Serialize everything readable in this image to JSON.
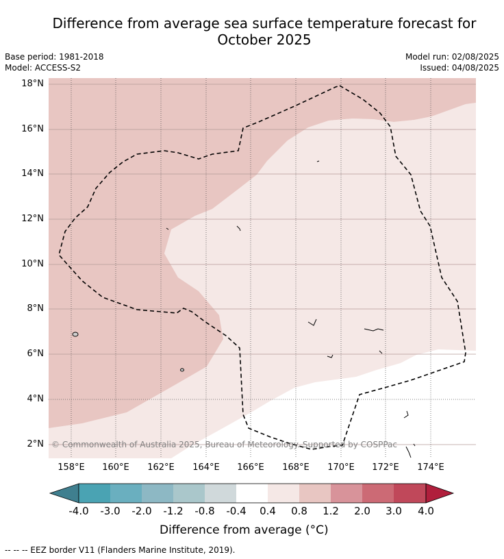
{
  "title_line1": "Difference from average sea surface temperature forecast for",
  "title_line2": "October 2025",
  "meta_left": [
    "Base period: 1981-2018",
    "Model: ACCESS-S2"
  ],
  "meta_right": [
    "Model run: 02/08/2025",
    "Issued: 04/08/2025"
  ],
  "map": {
    "lon_range": [
      157,
      176
    ],
    "lat_range": [
      1.4,
      18.3
    ],
    "y_ticks": [
      {
        "label": "18°N",
        "lat": 18
      },
      {
        "label": "16°N",
        "lat": 16
      },
      {
        "label": "14°N",
        "lat": 14
      },
      {
        "label": "12°N",
        "lat": 12
      },
      {
        "label": "10°N",
        "lat": 10
      },
      {
        "label": "8°N",
        "lat": 8
      },
      {
        "label": "6°N",
        "lat": 6
      },
      {
        "label": "4°N",
        "lat": 4
      },
      {
        "label": "2°N",
        "lat": 2
      }
    ],
    "x_ticks": [
      {
        "label": "158°E",
        "lon": 158
      },
      {
        "label": "160°E",
        "lon": 160
      },
      {
        "label": "162°E",
        "lon": 162
      },
      {
        "label": "164°E",
        "lon": 164
      },
      {
        "label": "166°E",
        "lon": 166
      },
      {
        "label": "168°E",
        "lon": 168
      },
      {
        "label": "170°E",
        "lon": 170
      },
      {
        "label": "172°E",
        "lon": 172
      },
      {
        "label": "174°E",
        "lon": 174
      }
    ],
    "zone_colors": {
      "1.2 to 2.0": "#e8c6c2",
      "0.8 to 1.2": "#f5e8e6",
      "0.4 to 0.8": "#ffffff"
    },
    "copyright": "© Commonwealth of Australia 2025, Bureau of Meteorology. Supported by COSPPac"
  },
  "colorbar": {
    "title": "Difference from average (°C)",
    "labels": [
      "-4.0",
      "-3.0",
      "-2.0",
      "-1.2",
      "-0.8",
      "-0.4",
      "0.4",
      "0.8",
      "1.2",
      "2.0",
      "3.0",
      "4.0"
    ],
    "colors": [
      "#3f7f8f",
      "#4aa3b3",
      "#6aafbf",
      "#8db8c4",
      "#aac7cb",
      "#d0d9db",
      "#ffffff",
      "#f5e8e6",
      "#e8c6c2",
      "#d8939a",
      "#cc6a75",
      "#c0485a",
      "#b01f3c"
    ]
  },
  "footer": "--  --  -- EEZ border V11 (Flanders Marine Institute, 2019)."
}
